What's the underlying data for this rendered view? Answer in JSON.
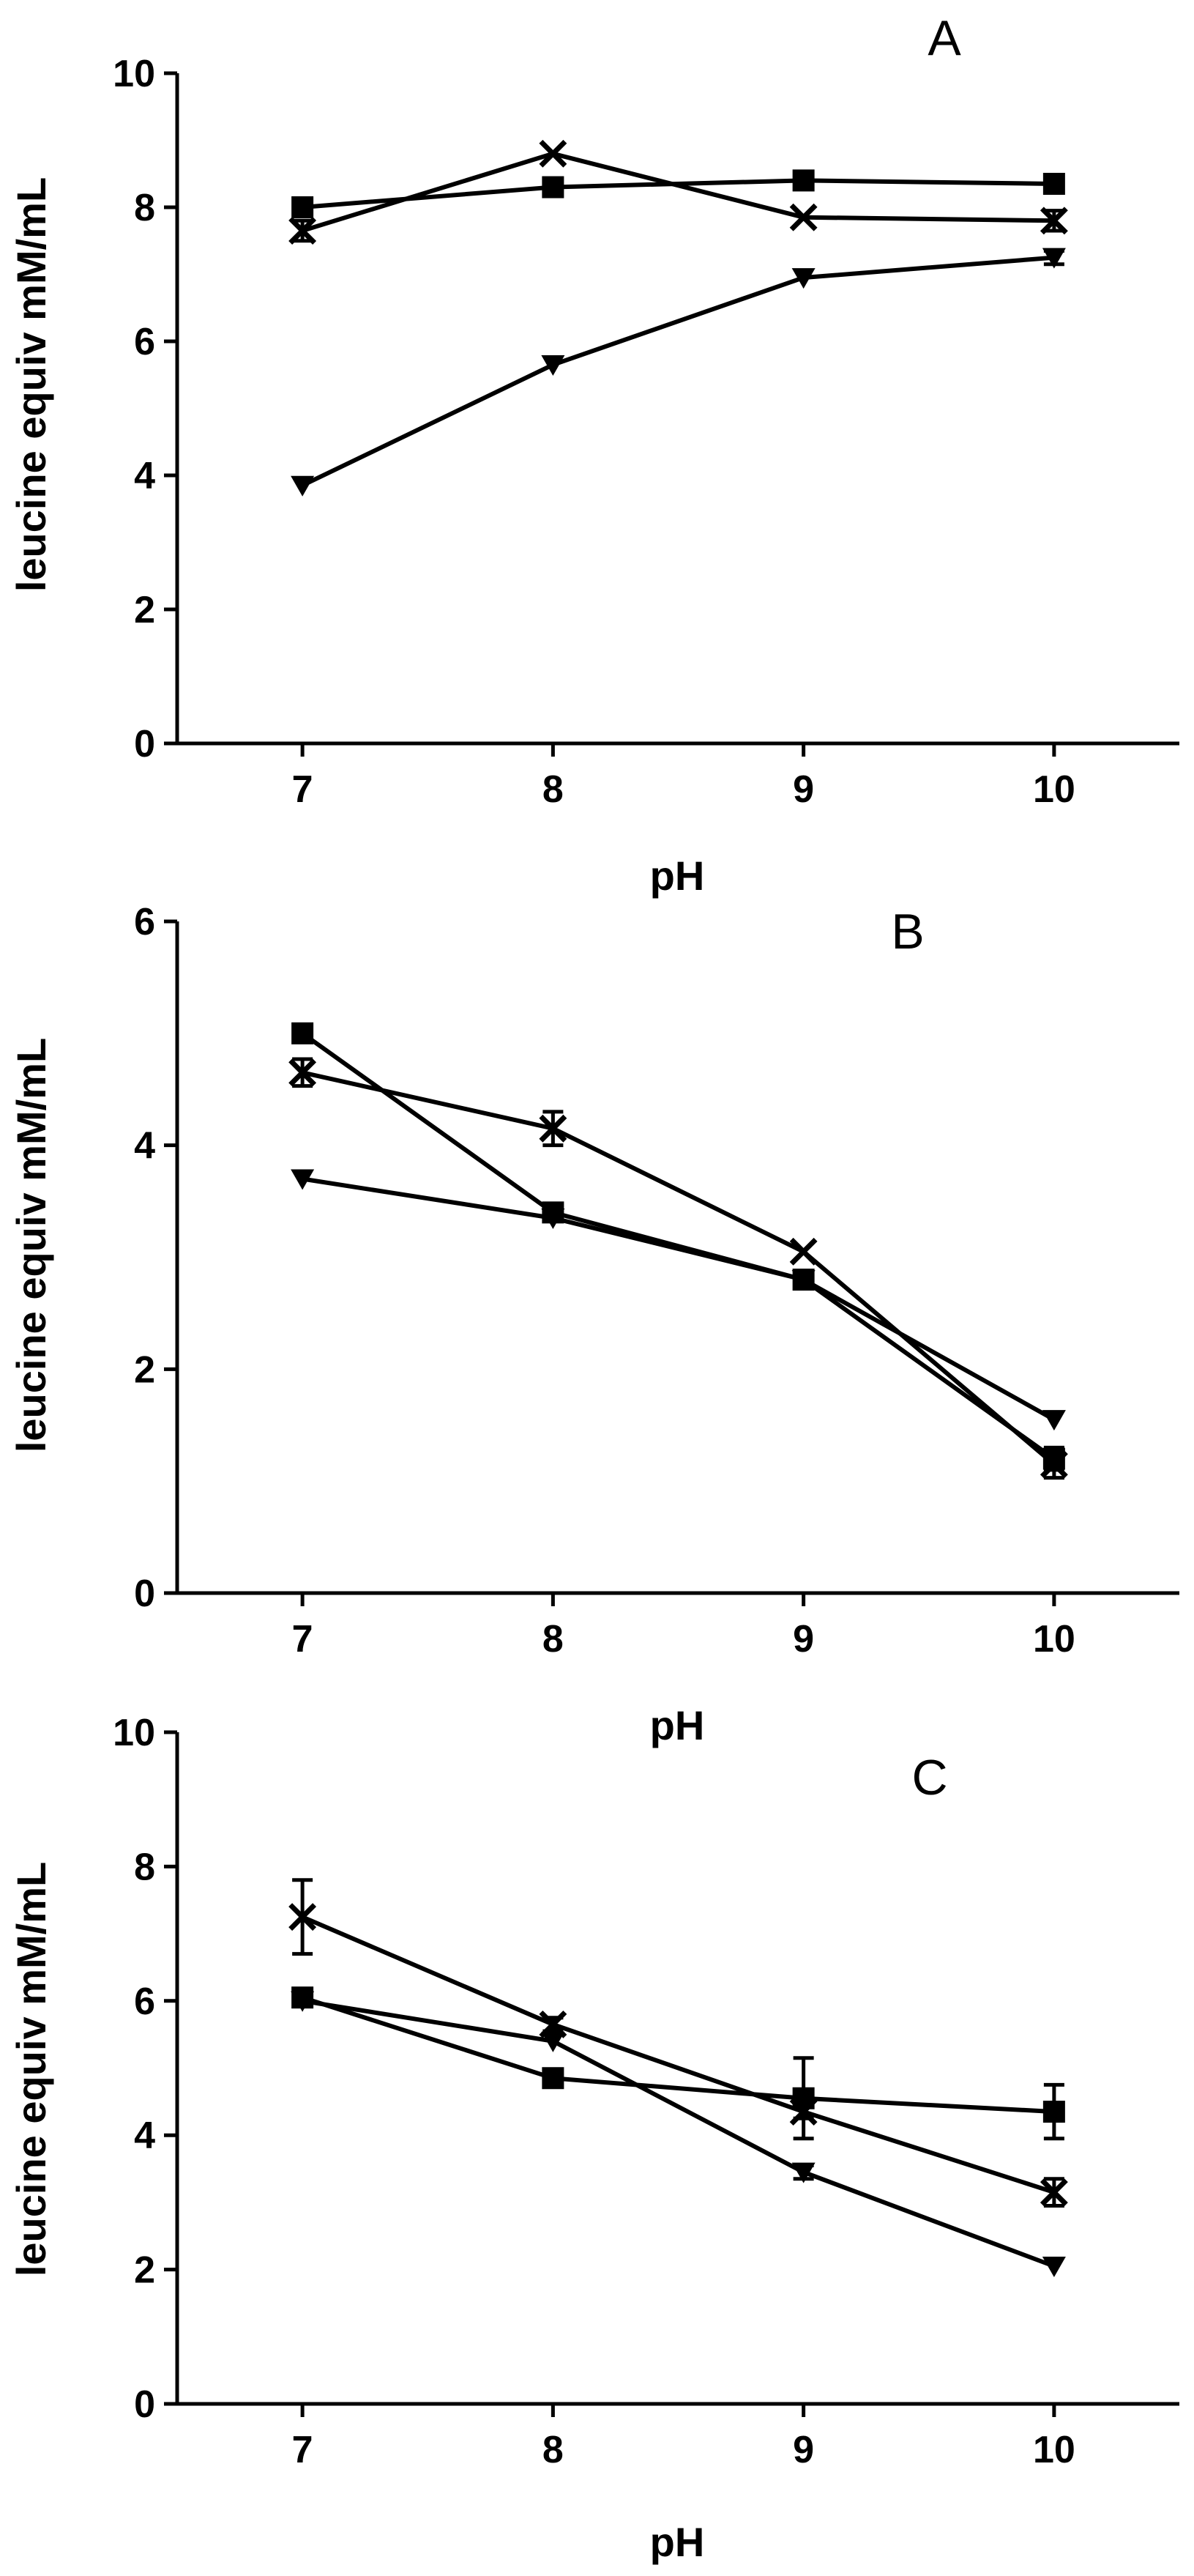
{
  "chart_data": [
    {
      "panel": "A",
      "type": "line",
      "title": "A",
      "xlabel": "pH",
      "ylabel": "leucine equiv mM/mL",
      "x": [
        7,
        8,
        9,
        10
      ],
      "xticks": [
        "7",
        "8",
        "9",
        "10"
      ],
      "xlim": [
        6.5,
        10.5
      ],
      "ylim": [
        0,
        10
      ],
      "yticks": [
        "0",
        "2",
        "4",
        "6",
        "8",
        "10"
      ],
      "series": [
        {
          "marker": "square",
          "values": [
            8.0,
            8.3,
            8.4,
            8.35
          ],
          "err": [
            0.1,
            0.05,
            0.05,
            0.05
          ]
        },
        {
          "marker": "cross",
          "values": [
            7.65,
            8.8,
            7.85,
            7.8
          ],
          "err": [
            0.15,
            0.05,
            0.05,
            0.15
          ]
        },
        {
          "marker": "triangle",
          "values": [
            3.85,
            5.65,
            6.95,
            7.25
          ],
          "err": [
            0.05,
            0.05,
            0.05,
            0.1
          ]
        }
      ]
    },
    {
      "panel": "B",
      "type": "line",
      "title": "B",
      "xlabel": "pH",
      "ylabel": "leucine equiv mM/mL",
      "x": [
        7,
        8,
        9,
        10
      ],
      "xticks": [
        "7",
        "8",
        "9",
        "10"
      ],
      "xlim": [
        6.5,
        10.5
      ],
      "ylim": [
        0,
        6
      ],
      "yticks": [
        "0",
        "2",
        "4",
        "6"
      ],
      "series": [
        {
          "marker": "square",
          "values": [
            5.0,
            3.4,
            2.8,
            1.2
          ],
          "err": [
            0.03,
            0.03,
            0.03,
            0.1
          ]
        },
        {
          "marker": "cross",
          "values": [
            4.65,
            4.15,
            3.05,
            1.15
          ],
          "err": [
            0.12,
            0.15,
            0.05,
            0.12
          ]
        },
        {
          "marker": "triangle",
          "values": [
            3.7,
            3.35,
            2.8,
            1.55
          ],
          "err": [
            0.03,
            0.03,
            0.03,
            0.03
          ]
        }
      ]
    },
    {
      "panel": "C",
      "type": "line",
      "title": "C",
      "xlabel": "pH",
      "ylabel": "leucine equiv mM/mL",
      "x": [
        7,
        8,
        9,
        10
      ],
      "xticks": [
        "7",
        "8",
        "9",
        "10"
      ],
      "xlim": [
        6.5,
        10.5
      ],
      "ylim": [
        0,
        10
      ],
      "yticks": [
        "0",
        "2",
        "4",
        "6",
        "8",
        "10"
      ],
      "series": [
        {
          "marker": "square",
          "values": [
            6.05,
            4.85,
            4.55,
            4.35
          ],
          "err": [
            0.1,
            0.05,
            0.6,
            0.4
          ]
        },
        {
          "marker": "cross",
          "values": [
            7.25,
            5.65,
            4.35,
            3.15
          ],
          "err": [
            0.55,
            0.1,
            0.1,
            0.2
          ]
        },
        {
          "marker": "triangle",
          "values": [
            6.0,
            5.4,
            3.45,
            2.05
          ],
          "err": [
            0.05,
            0.05,
            0.1,
            0.05
          ]
        }
      ]
    }
  ]
}
